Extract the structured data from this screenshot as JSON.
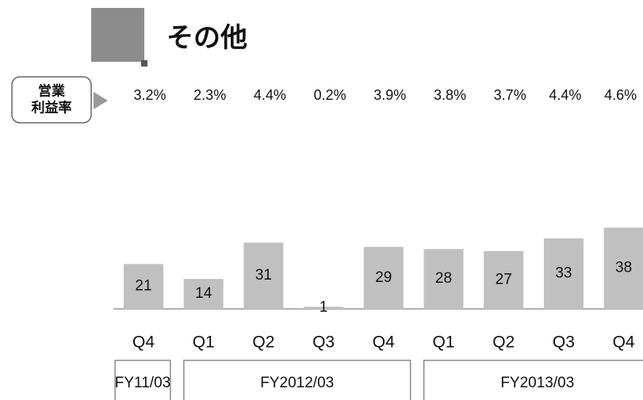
{
  "chart_data": {
    "type": "bar",
    "title": "その他",
    "categories": [
      "Q4",
      "Q1",
      "Q2",
      "Q3",
      "Q4",
      "Q1",
      "Q2",
      "Q3",
      "Q4"
    ],
    "values": [
      21,
      14,
      31,
      1,
      29,
      28,
      27,
      33,
      38
    ],
    "color": "#c0c0c0",
    "fiscal_years": [
      "FY11/03",
      "FY2012/03",
      "FY2013/03"
    ],
    "operating_margin": {
      "label": [
        "営業",
        "利益率"
      ],
      "values": [
        3.2,
        2.3,
        4.4,
        0.2,
        3.9,
        3.8,
        3.7,
        4.4,
        4.6
      ],
      "value_labels": [
        "3.2%",
        "2.3%",
        "4.4%",
        "0.2%",
        "3.9%",
        "3.8%",
        "3.7%",
        "4.4%",
        "4.6%"
      ]
    }
  }
}
